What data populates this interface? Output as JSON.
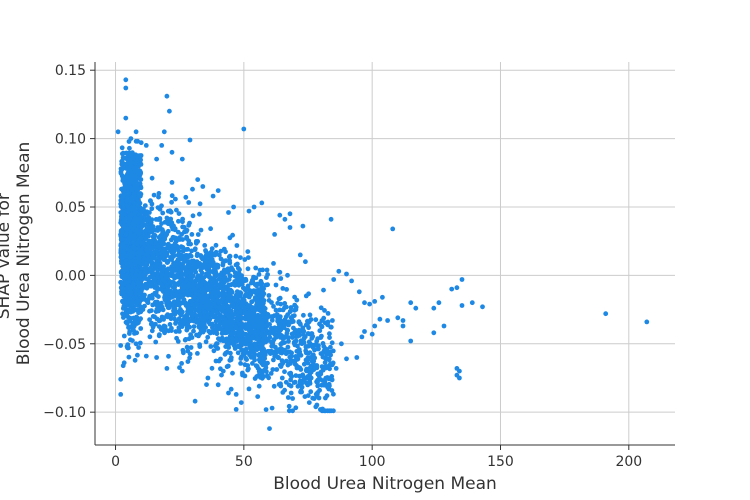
{
  "chart_data": {
    "type": "scatter",
    "xlabel": "Blood Urea Nitrogen Mean",
    "ylabel_lines": [
      "SHAP value for",
      "Blood Urea Nitrogen Mean"
    ],
    "xlim": [
      -8,
      218
    ],
    "ylim": [
      -0.124,
      0.156
    ],
    "x_ticks": [
      0,
      50,
      100,
      150,
      200
    ],
    "x_tick_labels": [
      "0",
      "50",
      "100",
      "150",
      "200"
    ],
    "y_ticks": [
      -0.1,
      -0.05,
      0.0,
      0.05,
      0.1,
      0.15
    ],
    "y_tick_labels": [
      "−0.10",
      "−0.05",
      "0.00",
      "0.05",
      "0.10",
      "0.15"
    ],
    "grid": true,
    "point_color": "#1e88e5",
    "points": [
      [
        1,
        0.105
      ],
      [
        4,
        0.143
      ],
      [
        4,
        0.137
      ],
      [
        4,
        0.115
      ],
      [
        20,
        0.131
      ],
      [
        21,
        0.12
      ],
      [
        29,
        0.099
      ],
      [
        50,
        0.107
      ],
      [
        2,
        -0.087
      ],
      [
        2,
        -0.076
      ],
      [
        3,
        -0.066
      ],
      [
        5,
        -0.053
      ],
      [
        60,
        -0.112
      ],
      [
        61,
        -0.097
      ],
      [
        47,
        -0.098
      ],
      [
        49,
        -0.093
      ],
      [
        31,
        -0.092
      ],
      [
        69,
        -0.09
      ],
      [
        108,
        0.034
      ],
      [
        84,
        0.041
      ],
      [
        57,
        0.053
      ],
      [
        68,
        0.045
      ],
      [
        191,
        -0.028
      ],
      [
        207,
        -0.034
      ],
      [
        133,
        -0.068
      ],
      [
        134,
        -0.07
      ],
      [
        133,
        -0.073
      ],
      [
        134,
        -0.075
      ],
      [
        135,
        -0.003
      ],
      [
        131,
        -0.01
      ],
      [
        133,
        -0.009
      ],
      [
        143,
        -0.023
      ],
      [
        139,
        -0.02
      ],
      [
        135,
        -0.022
      ],
      [
        126,
        -0.02
      ],
      [
        124,
        -0.024
      ],
      [
        128,
        -0.037
      ],
      [
        124,
        -0.042
      ],
      [
        115,
        -0.02
      ],
      [
        117,
        -0.024
      ],
      [
        115,
        -0.048
      ],
      [
        112,
        -0.037
      ],
      [
        112,
        -0.033
      ],
      [
        110,
        -0.031
      ],
      [
        106,
        -0.033
      ],
      [
        104,
        -0.016
      ],
      [
        103,
        -0.032
      ],
      [
        101,
        -0.037
      ],
      [
        100,
        -0.043
      ],
      [
        97,
        -0.041
      ],
      [
        96,
        -0.045
      ],
      [
        94,
        -0.06
      ],
      [
        90,
        -0.061
      ],
      [
        88,
        -0.05
      ],
      [
        86,
        -0.068
      ],
      [
        82,
        -0.08
      ],
      [
        80,
        -0.072
      ],
      [
        78,
        -0.066
      ],
      [
        92,
        -0.004
      ],
      [
        90,
        0.001
      ],
      [
        87,
        0.003
      ],
      [
        85,
        -0.003
      ],
      [
        95,
        -0.012
      ],
      [
        97,
        -0.02
      ],
      [
        99,
        -0.021
      ],
      [
        101,
        -0.019
      ],
      [
        74,
        0.01
      ],
      [
        72,
        0.015
      ],
      [
        73,
        0.036
      ],
      [
        68,
        0.035
      ],
      [
        66,
        0.041
      ],
      [
        62,
        0.03
      ],
      [
        64,
        0.044
      ],
      [
        54,
        0.05
      ],
      [
        52,
        0.047
      ],
      [
        46,
        0.05
      ],
      [
        44,
        0.046
      ],
      [
        40,
        0.062
      ],
      [
        38,
        0.058
      ],
      [
        34,
        0.065
      ],
      [
        30,
        0.063
      ],
      [
        32,
        0.07
      ],
      [
        26,
        0.085
      ],
      [
        22,
        0.09
      ],
      [
        18,
        0.095
      ],
      [
        16,
        0.085
      ],
      [
        19,
        0.105
      ],
      [
        12,
        0.095
      ],
      [
        8,
        0.105
      ],
      [
        6,
        0.1
      ],
      [
        10,
        0.097
      ],
      [
        36,
        -0.075
      ],
      [
        40,
        -0.08
      ],
      [
        44,
        -0.086
      ],
      [
        52,
        -0.083
      ],
      [
        56,
        -0.081
      ],
      [
        26,
        -0.07
      ],
      [
        20,
        -0.068
      ],
      [
        16,
        -0.06
      ],
      [
        12,
        -0.059
      ],
      [
        8,
        -0.05
      ],
      [
        65,
        -0.075
      ],
      [
        72,
        -0.078
      ],
      [
        42,
        -0.07
      ],
      [
        47,
        -0.087
      ]
    ],
    "cluster_density": 4200,
    "seed": 20240917
  }
}
